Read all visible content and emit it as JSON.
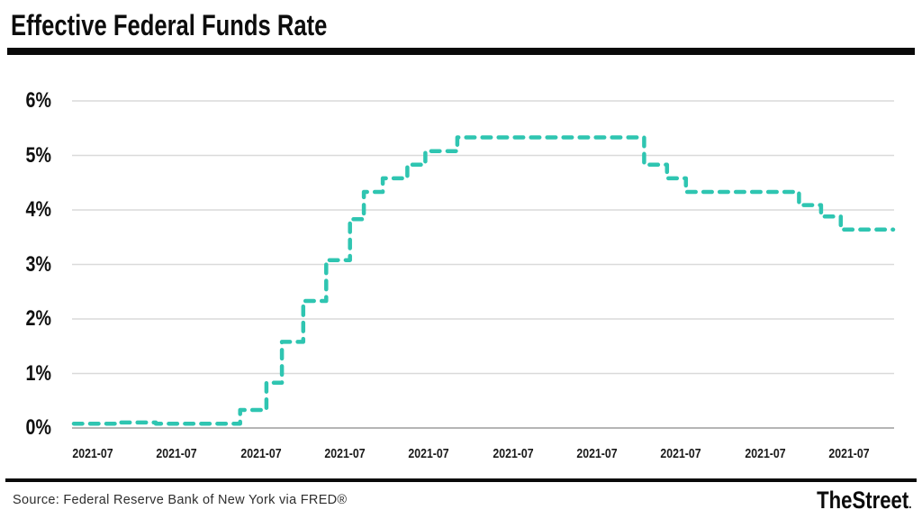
{
  "header": {
    "title": "Effective Federal Funds Rate"
  },
  "footer": {
    "source": "Source: Federal Reserve Bank of New York via FRED®",
    "brand": "TheStreet",
    "brand_dot": "."
  },
  "chart_data": {
    "type": "line",
    "subtype": "step",
    "line_dash": "dashed",
    "title": "Effective Federal Funds Rate",
    "ylabel": "",
    "xlabel": "",
    "unit": "percent",
    "ylim": [
      0,
      6
    ],
    "grid": "horizontal",
    "line_color": "#2fc5b1",
    "gridline_color": "#dadada",
    "axis_color": "#b5b5b5",
    "y_ticks": [
      {
        "label": "6%",
        "value": 6
      },
      {
        "label": "5%",
        "value": 5
      },
      {
        "label": "4%",
        "value": 4
      },
      {
        "label": "3%",
        "value": 3
      },
      {
        "label": "2%",
        "value": 2
      },
      {
        "label": "1%",
        "value": 1
      },
      {
        "label": "0%",
        "value": 0
      }
    ],
    "x_tick_labels": [
      "2021-07",
      "2021-07",
      "2021-07",
      "2021-07",
      "2021-07",
      "2021-07",
      "2021-07",
      "2021-07",
      "2021-07",
      "2021-07"
    ],
    "steps": [
      {
        "value": 0.08,
        "from": 0.0,
        "to": 0.055
      },
      {
        "value": 0.1,
        "from": 0.055,
        "to": 0.1
      },
      {
        "value": 0.08,
        "from": 0.1,
        "to": 0.203
      },
      {
        "value": 0.33,
        "from": 0.203,
        "to": 0.235
      },
      {
        "value": 0.83,
        "from": 0.235,
        "to": 0.254
      },
      {
        "value": 1.58,
        "from": 0.254,
        "to": 0.28
      },
      {
        "value": 2.33,
        "from": 0.28,
        "to": 0.308
      },
      {
        "value": 3.08,
        "from": 0.308,
        "to": 0.337
      },
      {
        "value": 3.83,
        "from": 0.337,
        "to": 0.354
      },
      {
        "value": 4.33,
        "from": 0.354,
        "to": 0.377
      },
      {
        "value": 4.58,
        "from": 0.377,
        "to": 0.407
      },
      {
        "value": 4.83,
        "from": 0.407,
        "to": 0.429
      },
      {
        "value": 5.08,
        "from": 0.429,
        "to": 0.468
      },
      {
        "value": 5.33,
        "from": 0.468,
        "to": 0.696
      },
      {
        "value": 4.83,
        "from": 0.696,
        "to": 0.724
      },
      {
        "value": 4.58,
        "from": 0.724,
        "to": 0.747
      },
      {
        "value": 4.33,
        "from": 0.747,
        "to": 0.885
      },
      {
        "value": 4.09,
        "from": 0.885,
        "to": 0.912
      },
      {
        "value": 3.88,
        "from": 0.912,
        "to": 0.936
      },
      {
        "value": 3.64,
        "from": 0.936,
        "to": 1.0
      }
    ]
  }
}
